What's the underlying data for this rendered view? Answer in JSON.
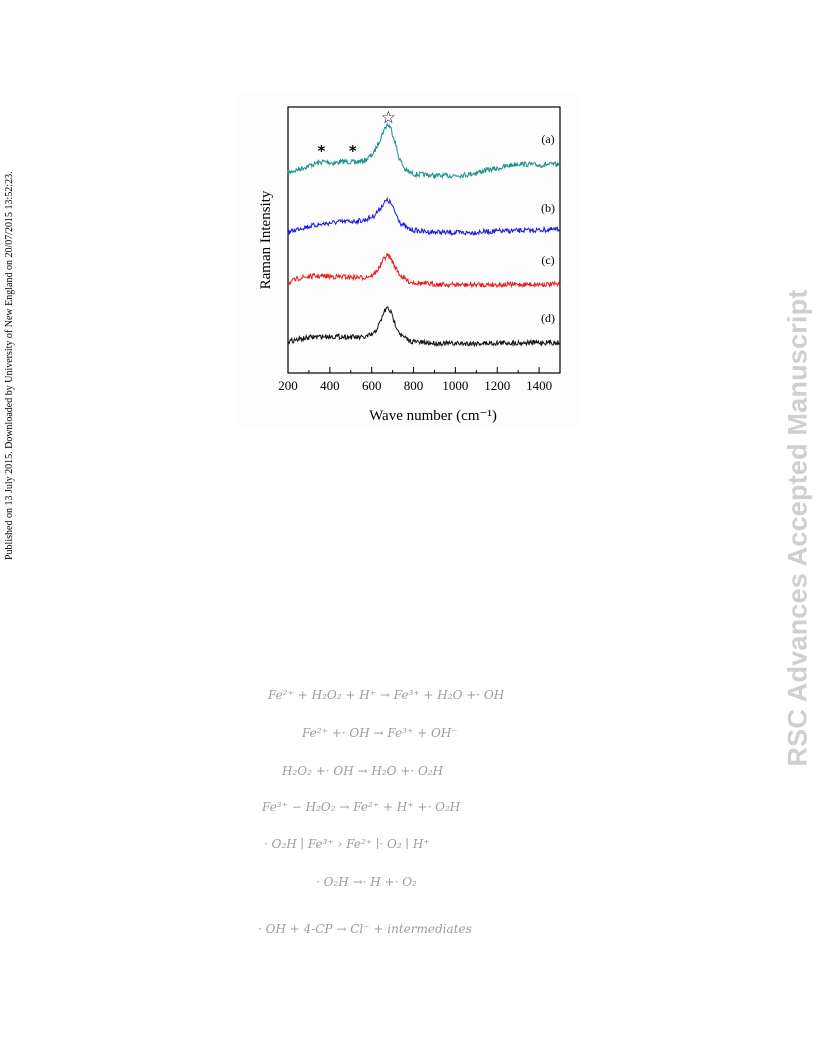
{
  "side_note": "Published on 13 July 2015. Downloaded by University of New England on 20/07/2015 13:52:23.",
  "watermark": "RSC Advances Accepted Manuscript",
  "chart_data": {
    "type": "line",
    "xlabel": "Wave number (cm⁻¹)",
    "ylabel": "Raman Intensity",
    "xlim": [
      200,
      1500
    ],
    "x_ticks": [
      "200",
      "400",
      "600",
      "800",
      "1000",
      "1200",
      "1400"
    ],
    "y_ticks": false,
    "grid": false,
    "series": [
      {
        "name": "(a)",
        "color": "#1a9089",
        "x": [
          200,
          260,
          320,
          370,
          420,
          470,
          520,
          570,
          610,
          640,
          660,
          675,
          690,
          710,
          730,
          760,
          800,
          850,
          900,
          950,
          1000,
          1050,
          1100,
          1150,
          1200,
          1250,
          1300,
          1350,
          1400,
          1450,
          1500
        ],
        "y": [
          0.15,
          0.3,
          0.45,
          0.55,
          0.5,
          0.56,
          0.52,
          0.6,
          0.85,
          1.35,
          1.7,
          1.88,
          1.78,
          1.3,
          0.7,
          0.25,
          0.1,
          0.08,
          0.05,
          0.04,
          0.06,
          0.08,
          0.15,
          0.25,
          0.3,
          0.4,
          0.48,
          0.45,
          0.42,
          0.45,
          0.44
        ]
      },
      {
        "name": "(b)",
        "color": "#1c1ce0",
        "x": [
          200,
          260,
          320,
          380,
          440,
          500,
          560,
          610,
          640,
          660,
          675,
          690,
          710,
          740,
          780,
          850,
          950,
          1050,
          1150,
          1250,
          1350,
          1450,
          1500
        ],
        "y": [
          0.05,
          0.2,
          0.28,
          0.35,
          0.4,
          0.42,
          0.45,
          0.6,
          0.85,
          1.05,
          1.12,
          1.05,
          0.75,
          0.35,
          0.15,
          0.08,
          0.05,
          0.04,
          0.08,
          0.1,
          0.12,
          0.14,
          0.15
        ]
      },
      {
        "name": "(c)",
        "color": "#e81c1c",
        "x": [
          200,
          260,
          320,
          380,
          440,
          500,
          560,
          610,
          640,
          660,
          675,
          690,
          710,
          740,
          780,
          850,
          950,
          1050,
          1150,
          1250,
          1350,
          1450,
          1500
        ],
        "y": [
          0.1,
          0.3,
          0.35,
          0.35,
          0.33,
          0.32,
          0.3,
          0.4,
          0.7,
          1.0,
          1.1,
          1.0,
          0.7,
          0.35,
          0.15,
          0.08,
          0.05,
          0.04,
          0.05,
          0.05,
          0.06,
          0.06,
          0.05
        ]
      },
      {
        "name": "(d)",
        "color": "#111111",
        "x": [
          200,
          260,
          320,
          380,
          440,
          500,
          560,
          610,
          640,
          660,
          675,
          690,
          710,
          740,
          780,
          850,
          950,
          1050,
          1150,
          1250,
          1350,
          1450,
          1500
        ],
        "y": [
          0.1,
          0.2,
          0.28,
          0.3,
          0.3,
          0.28,
          0.25,
          0.4,
          0.85,
          1.3,
          1.45,
          1.3,
          0.85,
          0.35,
          0.12,
          0.05,
          0.02,
          0.02,
          0.03,
          0.05,
          0.05,
          0.06,
          0.05
        ]
      }
    ],
    "annotations": [
      {
        "text": "☆",
        "x": 680
      },
      {
        "text": "*",
        "x": 360
      },
      {
        "text": "*",
        "x": 510
      }
    ]
  },
  "equations": [
    "Fe²⁺ + H₂O₂ + H⁺ → Fe³⁺ + H₂O +· OH",
    "Fe²⁺ +· OH → Fe³⁺ + OH⁻",
    "H₂O₂ +· OH → H₂O +· O₂H",
    "Fe³⁺ − H₂O₂ → Fe²⁺ + H⁺ +· O₂H",
    "· O₂H ∣ Fe³⁺ › Fe²⁺ ∣· O₂ ∣ H⁺",
    "· O₂H →· H +· O₂",
    "· OH + 4-CP → Cl⁻ + intermediates"
  ]
}
